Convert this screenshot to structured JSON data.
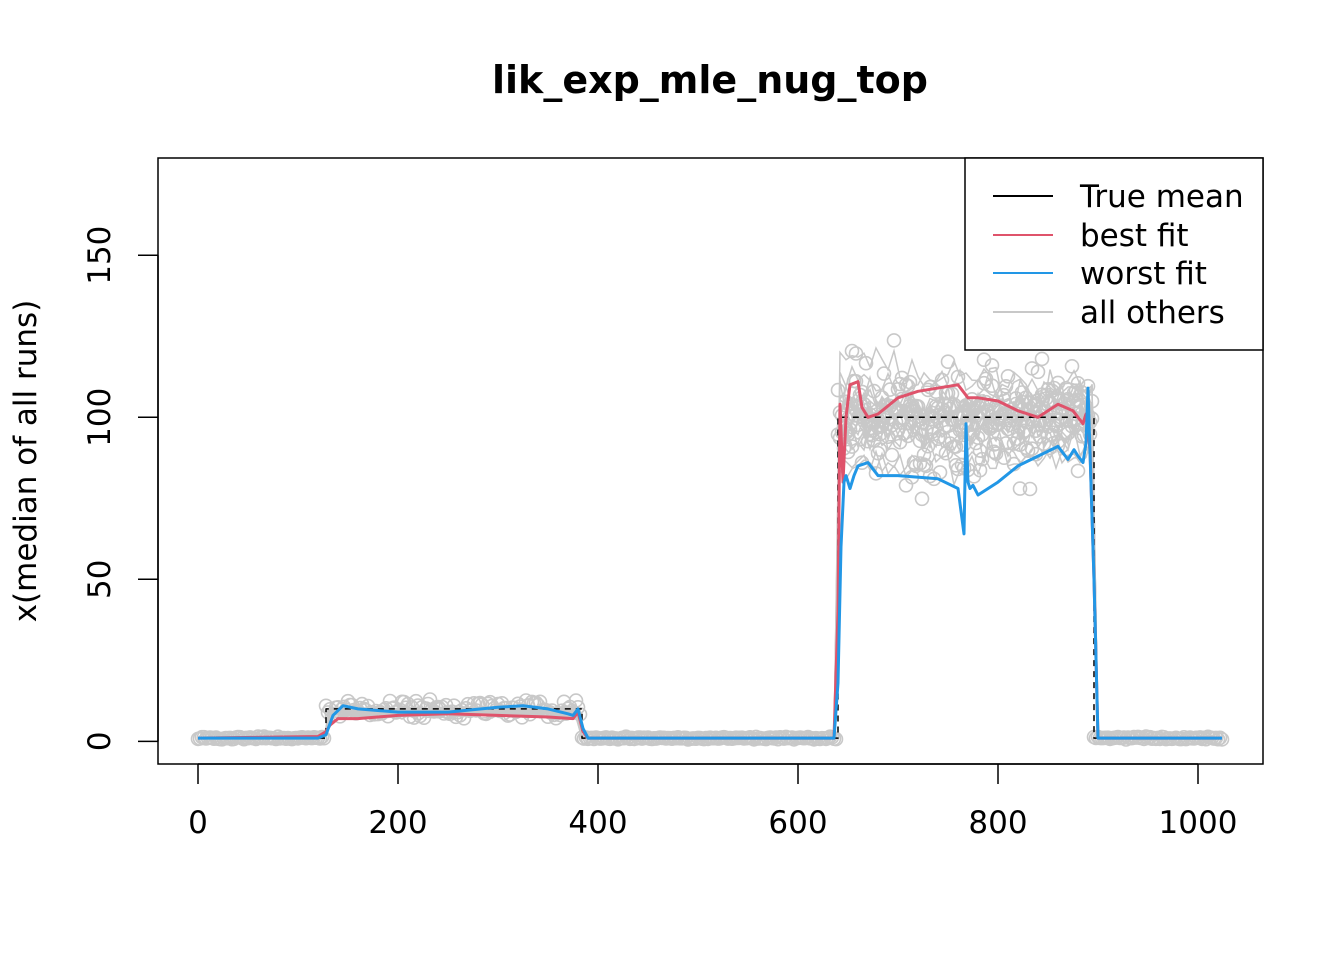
{
  "chart_data": {
    "type": "line",
    "title": "lik_exp_mle_nug_top",
    "xlabel": "",
    "ylabel": "x(median of all runs)",
    "xlim": [
      -40,
      1065
    ],
    "ylim": [
      -7,
      180
    ],
    "x_ticks": [
      0,
      200,
      400,
      600,
      800,
      1000
    ],
    "y_ticks": [
      0,
      50,
      100,
      150
    ],
    "grid": false,
    "legend_position": "top-right",
    "colors": {
      "true_mean": "#000000",
      "best_fit": "#DF536B",
      "worst_fit": "#2297E6",
      "all_others": "#C8C8C8"
    },
    "series": [
      {
        "name": "True mean",
        "x": [
          0,
          128,
          128,
          384,
          384,
          640,
          640,
          896,
          896,
          1024
        ],
        "y": [
          1,
          1,
          10,
          10,
          1,
          1,
          100,
          100,
          1,
          1
        ]
      },
      {
        "name": "best fit",
        "x": [
          0,
          120,
          128,
          132,
          140,
          160,
          200,
          250,
          300,
          350,
          375,
          380,
          385,
          390,
          400,
          500,
          600,
          636,
          640,
          642,
          645,
          648,
          652,
          660,
          664,
          670,
          680,
          700,
          720,
          760,
          770,
          780,
          800,
          820,
          840,
          860,
          875,
          880,
          885,
          888,
          892,
          896,
          900,
          1024
        ],
        "y": [
          1,
          1.5,
          3,
          5,
          7,
          7,
          8,
          8.5,
          8,
          7.5,
          7,
          9,
          3,
          1,
          1,
          1,
          1,
          1,
          40,
          104,
          80,
          100,
          110,
          111,
          103,
          100,
          101,
          106,
          108,
          110,
          106,
          106,
          105,
          102,
          100,
          104,
          102,
          100,
          98,
          101,
          90,
          50,
          1,
          1
        ]
      },
      {
        "name": "worst fit",
        "x": [
          0,
          120,
          128,
          135,
          145,
          160,
          200,
          250,
          300,
          325,
          350,
          370,
          375,
          380,
          385,
          390,
          400,
          500,
          600,
          636,
          640,
          643,
          646,
          648,
          652,
          656,
          660,
          670,
          680,
          700,
          740,
          760,
          766,
          768,
          770,
          772,
          775,
          780,
          800,
          820,
          840,
          860,
          870,
          876,
          880,
          885,
          888,
          890,
          896,
          900,
          1024
        ],
        "y": [
          1,
          1,
          2,
          8,
          11,
          10,
          9,
          9,
          10.5,
          11,
          10,
          8.5,
          8,
          10,
          4,
          1,
          1,
          1,
          1,
          1,
          18,
          60,
          80,
          82,
          78,
          82,
          85,
          86,
          82,
          82,
          81,
          78,
          64,
          98,
          80,
          78,
          79,
          76,
          80,
          85,
          88,
          91,
          87,
          90,
          88,
          86,
          92,
          109,
          50,
          1,
          1
        ]
      }
    ],
    "others_note": "all others"
  }
}
